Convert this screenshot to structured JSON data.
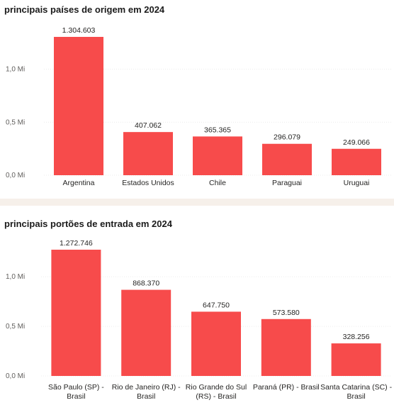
{
  "chart_data": [
    {
      "type": "bar",
      "title": "principais países de origem em 2024",
      "categories": [
        "Argentina",
        "Estados Unidos",
        "Chile",
        "Paraguai",
        "Uruguai"
      ],
      "values": [
        1304603,
        407062,
        365365,
        296079,
        249066
      ],
      "data_labels": [
        "1.304.603",
        "407.062",
        "365.365",
        "296.079",
        "249.066"
      ],
      "y_ticks": [
        {
          "value": 0,
          "label": "0,0 Mi"
        },
        {
          "value": 500000,
          "label": "0,5 Mi"
        },
        {
          "value": 1000000,
          "label": "1,0 Mi"
        }
      ],
      "ylim": [
        0,
        1304603
      ],
      "grid": true,
      "legend": "none",
      "color": "#f74b4b"
    },
    {
      "type": "bar",
      "title": "principais portões de entrada em 2024",
      "categories": [
        [
          "São Paulo (SP) -",
          "Brasil"
        ],
        [
          "Rio de Janeiro (RJ) -",
          "Brasil"
        ],
        [
          "Rio Grande do Sul",
          "(RS) - Brasil"
        ],
        [
          "Paraná (PR) - Brasil"
        ],
        [
          "Santa Catarina (SC) -",
          "Brasil"
        ]
      ],
      "values": [
        1272746,
        868370,
        647750,
        573580,
        328256
      ],
      "data_labels": [
        "1.272.746",
        "868.370",
        "647.750",
        "573.580",
        "328.256"
      ],
      "y_ticks": [
        {
          "value": 0,
          "label": "0,0 Mi"
        },
        {
          "value": 500000,
          "label": "0,5 Mi"
        },
        {
          "value": 1000000,
          "label": "1,0 Mi"
        }
      ],
      "ylim": [
        0,
        1272746
      ],
      "grid": true,
      "legend": "none",
      "color": "#f74b4b"
    }
  ]
}
